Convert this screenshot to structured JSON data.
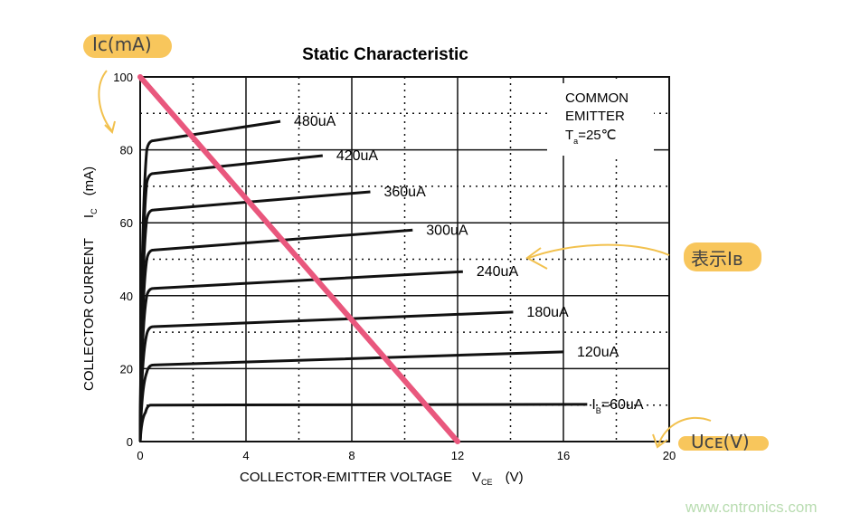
{
  "chart_data": {
    "type": "line",
    "title": "Static Characteristic",
    "xlabel": "COLLECTOR-EMITTER VOLTAGE",
    "xlabel_symbol": "V",
    "xlabel_symbol_sub": "CE",
    "xlabel_unit": "(V)",
    "ylabel": "COLLECTOR CURRENT",
    "ylabel_symbol": "I",
    "ylabel_symbol_sub": "C",
    "ylabel_unit": "(mA)",
    "xlim": [
      0,
      20
    ],
    "ylim": [
      0,
      100
    ],
    "xticks": [
      "0",
      "4",
      "8",
      "12",
      "16",
      "20"
    ],
    "yticks": [
      "0",
      "20",
      "40",
      "60",
      "80",
      "100"
    ],
    "grid": "solid major every 4 V / 20 mA, dotted minor every 2 V / 10 mA",
    "annotation": {
      "line1": "COMMON",
      "line2": "EMITTER",
      "line3_prefix": "T",
      "line3_sub": "a",
      "line3_suffix": "=25℃"
    },
    "series": [
      {
        "name": "480uA",
        "points": [
          [
            0,
            0
          ],
          [
            0.25,
            80
          ],
          [
            0.5,
            82.5
          ],
          [
            5.3,
            87.8
          ]
        ]
      },
      {
        "name": "420uA",
        "points": [
          [
            0,
            0
          ],
          [
            0.25,
            71
          ],
          [
            0.5,
            73.5
          ],
          [
            6.9,
            78.4
          ]
        ]
      },
      {
        "name": "360uA",
        "points": [
          [
            0,
            0
          ],
          [
            0.25,
            61
          ],
          [
            0.5,
            63.5
          ],
          [
            8.7,
            68.5
          ]
        ]
      },
      {
        "name": "300uA",
        "points": [
          [
            0,
            0
          ],
          [
            0.25,
            50
          ],
          [
            0.5,
            52.5
          ],
          [
            10.3,
            58
          ]
        ]
      },
      {
        "name": "240uA",
        "points": [
          [
            0,
            0
          ],
          [
            0.25,
            40
          ],
          [
            0.5,
            42
          ],
          [
            12.2,
            46.6
          ]
        ]
      },
      {
        "name": "180uA",
        "points": [
          [
            0,
            0
          ],
          [
            0.25,
            29.5
          ],
          [
            0.5,
            31.5
          ],
          [
            14.1,
            35.5
          ]
        ]
      },
      {
        "name": "120uA",
        "points": [
          [
            0,
            0
          ],
          [
            0.25,
            19
          ],
          [
            0.5,
            21
          ],
          [
            16,
            24.6
          ]
        ]
      },
      {
        "name": "I_B=60uA",
        "label_prefix": "I",
        "label_sub": "B",
        "label_suffix": "=60uA",
        "points": [
          [
            0,
            0
          ],
          [
            0.2,
            8
          ],
          [
            0.4,
            10
          ],
          [
            16.9,
            10.2
          ]
        ]
      }
    ],
    "load_line": {
      "points": [
        [
          0,
          100
        ],
        [
          12,
          0
        ]
      ],
      "color": "#e9577d"
    },
    "curve_color": "#111111"
  },
  "annotations": {
    "y_note": "Iᴄ(mA)",
    "ib_note": "表示Iʙ",
    "x_note": "Uᴄᴇ(V)",
    "highlight_color": "#f7c04a",
    "arrow_color": "#f2c14e"
  },
  "watermark": "www.cntronics.com"
}
